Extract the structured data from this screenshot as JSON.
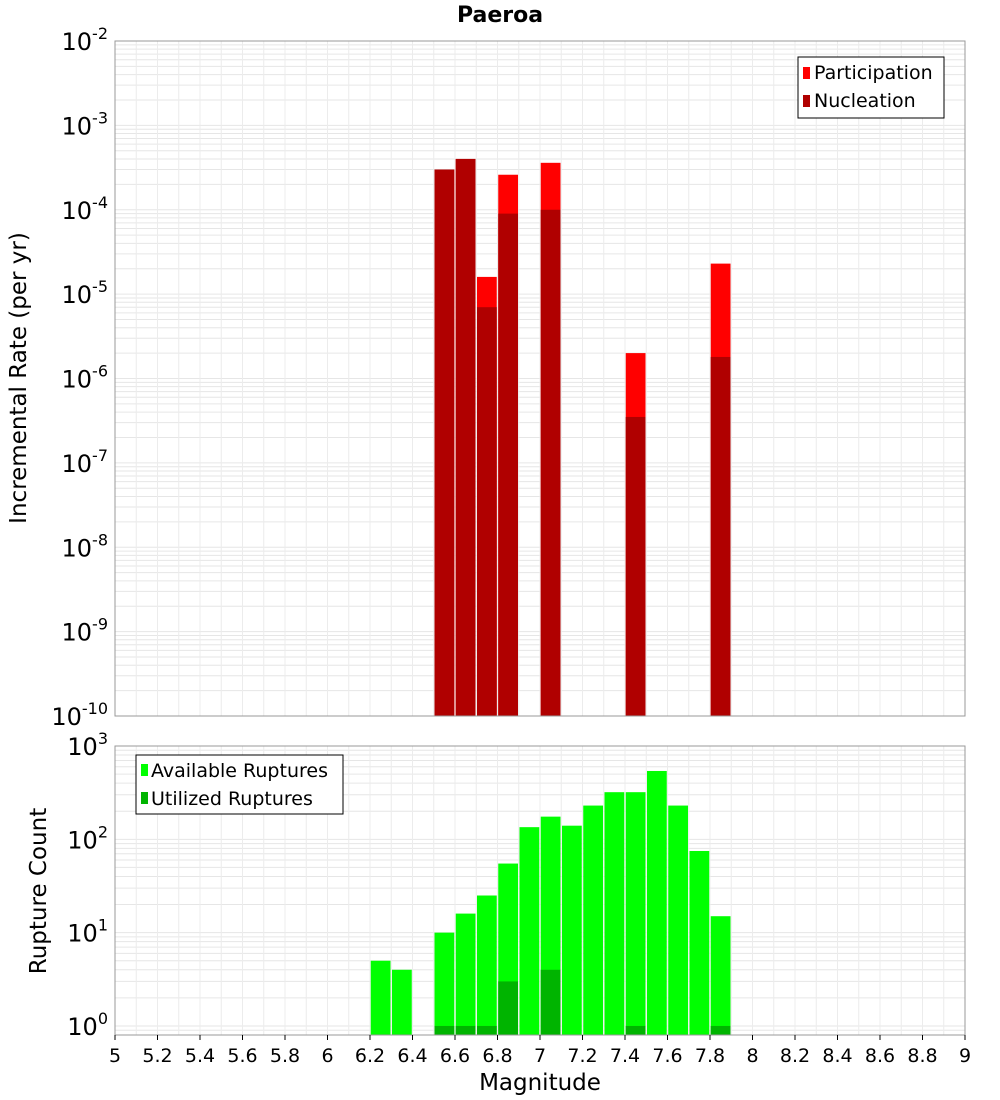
{
  "chart_data": [
    {
      "type": "bar",
      "title": "Paeroa",
      "xlabel": "",
      "ylabel": "Incremental Rate (per yr)",
      "xlim": [
        5,
        9
      ],
      "ylim": [
        1e-10,
        0.01
      ],
      "yscale": "log",
      "grid": true,
      "legend_position": "top-right",
      "y_tick_exponents": [
        "-10",
        "-9",
        "-8",
        "-7",
        "-6",
        "-5",
        "-4",
        "-3",
        "-2"
      ],
      "y_tick_base": "10",
      "series": [
        {
          "name": "Participation",
          "color": "#ff0000",
          "x": [
            6.55,
            6.65,
            6.75,
            6.85,
            7.05,
            7.45,
            7.85
          ],
          "values": [
            0.0003,
            0.0004,
            1.6e-05,
            0.00026,
            0.00036,
            2e-06,
            2.3e-05
          ]
        },
        {
          "name": "Nucleation",
          "color": "#b00000",
          "x": [
            6.55,
            6.65,
            6.75,
            6.85,
            7.05,
            7.45,
            7.85
          ],
          "values": [
            0.0003,
            0.0004,
            7e-06,
            9e-05,
            0.0001,
            3.5e-07,
            1.8e-06
          ]
        }
      ]
    },
    {
      "type": "bar",
      "title": "",
      "xlabel": "Magnitude",
      "ylabel": "Rupture Count",
      "xlim": [
        5,
        9
      ],
      "ylim": [
        0.8,
        1000
      ],
      "yscale": "log",
      "grid": true,
      "legend_position": "top-left",
      "x_ticks": [
        "5",
        "5.2",
        "5.4",
        "5.6",
        "5.8",
        "6",
        "6.2",
        "6.4",
        "6.6",
        "6.8",
        "7",
        "7.2",
        "7.4",
        "7.6",
        "7.8",
        "8",
        "8.2",
        "8.4",
        "8.6",
        "8.8",
        "9"
      ],
      "y_tick_exponents": [
        "0",
        "1",
        "2",
        "3"
      ],
      "y_tick_base": "10",
      "series": [
        {
          "name": "Available Ruptures",
          "color": "#00ff00",
          "x": [
            6.25,
            6.35,
            6.55,
            6.65,
            6.75,
            6.85,
            6.95,
            7.05,
            7.15,
            7.25,
            7.35,
            7.45,
            7.55,
            7.65,
            7.75,
            7.85
          ],
          "values": [
            5,
            4,
            10,
            16,
            25,
            55,
            135,
            175,
            140,
            230,
            320,
            320,
            540,
            230,
            75,
            15
          ]
        },
        {
          "name": "Utilized Ruptures",
          "color": "#00b400",
          "x": [
            6.55,
            6.65,
            6.75,
            6.85,
            7.05,
            7.45,
            7.85
          ],
          "values": [
            1,
            1,
            1,
            3,
            4,
            1,
            1
          ]
        }
      ]
    }
  ]
}
